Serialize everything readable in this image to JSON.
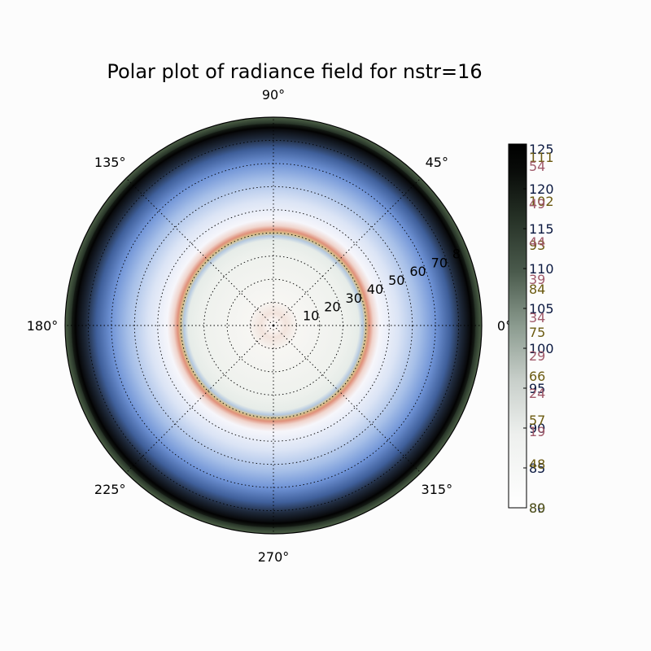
{
  "chart_data": {
    "type": "polar-contour",
    "title": "Polar plot of radiance field for nstr=16",
    "angle_ticks": [
      "0°",
      "45°",
      "90°",
      "135°",
      "180°",
      "225°",
      "270°",
      "315°"
    ],
    "radial_ticks": [
      "10",
      "20",
      "30",
      "40",
      "50",
      "60",
      "70",
      "8"
    ],
    "radial_range": [
      0,
      90
    ],
    "grid": true,
    "colorbar": {
      "placement": "right",
      "colormap": "white-gray-blue-black",
      "primary_ticks": [
        "80",
        "85",
        "90",
        "95",
        "100",
        "105",
        "110",
        "115",
        "120",
        "125"
      ],
      "overlay_ticks": [
        {
          "label": "89",
          "color": "#5a5a20"
        },
        {
          "label": "48",
          "color": "#6b5a10"
        },
        {
          "label": "57",
          "color": "#6b5a10"
        },
        {
          "label": "66",
          "color": "#6b5a10"
        },
        {
          "label": "75",
          "color": "#6b5a10"
        },
        {
          "label": "84",
          "color": "#6b5a10"
        },
        {
          "label": "93",
          "color": "#6b5a10"
        },
        {
          "label": "102",
          "color": "#6b5a10"
        },
        {
          "label": "111",
          "color": "#6b5a10"
        },
        {
          "label": "19",
          "color": "#a05a6a"
        },
        {
          "label": "24",
          "color": "#a05a6a"
        },
        {
          "label": "29",
          "color": "#a05a6a"
        },
        {
          "label": "34",
          "color": "#a05a6a"
        },
        {
          "label": "39",
          "color": "#a05a6a"
        },
        {
          "label": "44",
          "color": "#a05a6a"
        },
        {
          "label": "49",
          "color": "#a05a6a"
        },
        {
          "label": "54",
          "color": "#a05a6a"
        }
      ]
    },
    "field": {
      "description_levels": [
        {
          "r": 0,
          "value": 82
        },
        {
          "r": 30,
          "value": 85
        },
        {
          "r": 40,
          "value": 93
        },
        {
          "r": 44,
          "value": 85
        },
        {
          "r": 55,
          "value": 96
        },
        {
          "r": 70,
          "value": 106
        },
        {
          "r": 80,
          "value": 116
        },
        {
          "r": 88,
          "value": 124
        },
        {
          "r": 90,
          "value": 112
        }
      ]
    }
  }
}
